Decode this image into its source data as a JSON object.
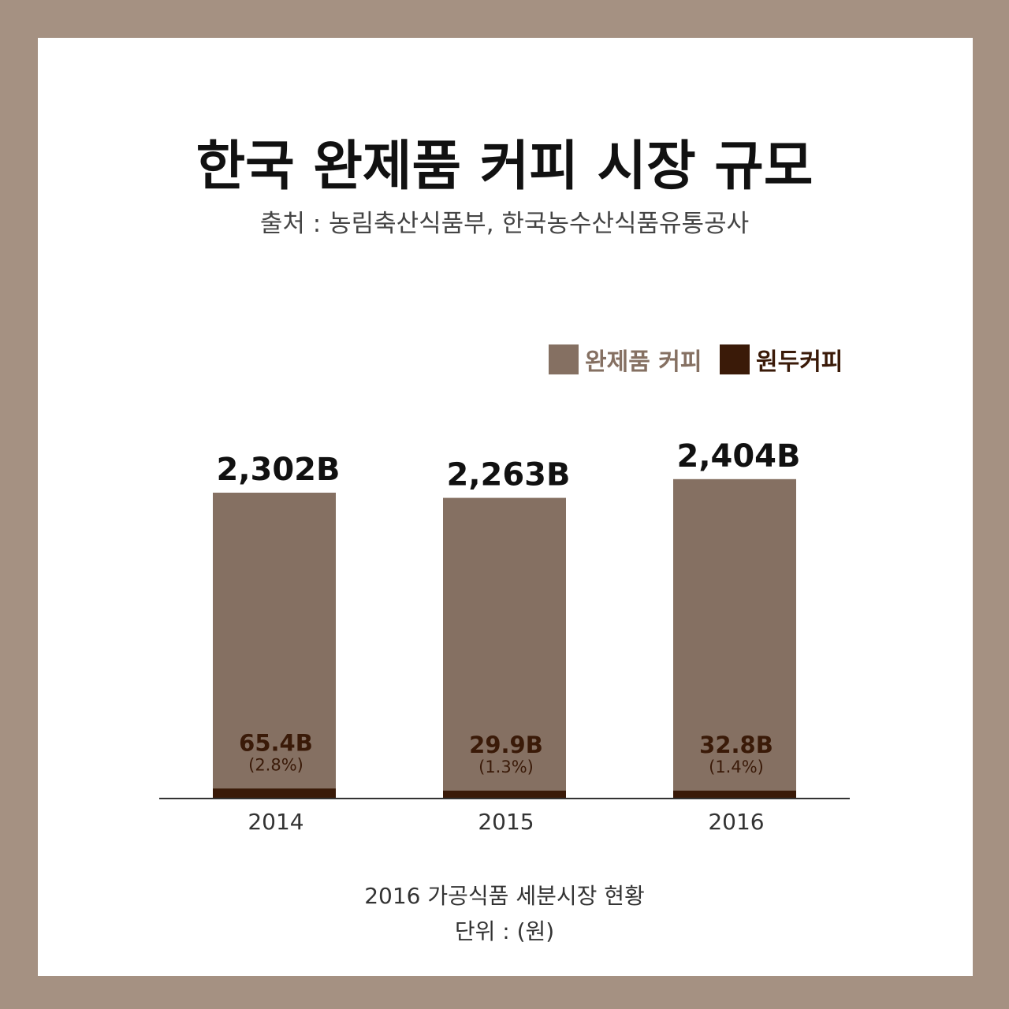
{
  "colors": {
    "frame": "#a59182",
    "finished_coffee": "#857062",
    "bean_coffee": "#3a1a08",
    "axis": "#333333"
  },
  "header": {
    "title": "한국 완제품 커피 시장 규모",
    "source": "출처 : 농림축산식품부, 한국농수산식품유통공사"
  },
  "footer": {
    "caption": "2016 가공식품 세분시장 현황",
    "unit": "단위 : (원)"
  },
  "chart_data": {
    "type": "bar",
    "stacked": true,
    "categories": [
      "2014",
      "2015",
      "2016"
    ],
    "series": [
      {
        "name": "완제품 커피",
        "color": "#857062",
        "values": [
          2302,
          2263,
          2404
        ],
        "labels": [
          "2,302B",
          "2,263B",
          "2,404B"
        ]
      },
      {
        "name": "원두커피",
        "color": "#3a1a08",
        "values": [
          65.4,
          29.9,
          32.8
        ],
        "labels": [
          "65.4B",
          "29.9B",
          "32.8B"
        ],
        "share_labels": [
          "(2.8%)",
          "(1.3%)",
          "(1.4%)"
        ]
      }
    ],
    "legend_position": "top-right",
    "grid": false
  }
}
